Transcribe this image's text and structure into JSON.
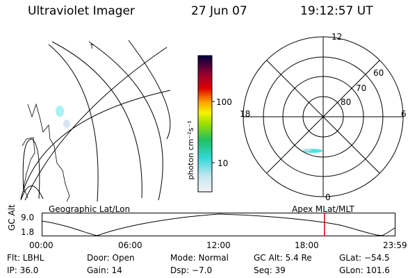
{
  "header": {
    "title": "Ultraviolet Imager",
    "date": "27 Jun 07",
    "time": "19:12:57 UT"
  },
  "geographic_panel": {
    "label": "Geographic Lat/Lon"
  },
  "colorbar": {
    "unit_label": "photon cm⁻²s⁻¹",
    "ticks": [
      "100",
      "10"
    ],
    "scale": "log"
  },
  "polar_panel": {
    "label": "Apex  MLat/MLT",
    "mlt_labels": {
      "top": "12",
      "left": "18",
      "right": "6",
      "bottom": "0"
    },
    "lat_labels": [
      "80",
      "70",
      "60"
    ]
  },
  "altitude_panel": {
    "ylabel": "GC Alt",
    "ymax": "9.0",
    "ymin": "1.8",
    "time_ticks": [
      "00:00",
      "06:00",
      "12:00",
      "18:00",
      "23:59"
    ],
    "current_time_hours": 19.22,
    "marker_color": "#dd0000"
  },
  "info": {
    "row1": {
      "filter": "Flt: LBHL",
      "door": "Door: Open",
      "mode": "Mode: Normal",
      "gc_alt": "GC Alt: 5.4 Re",
      "glat": "GLat: −54.5"
    },
    "row2": {
      "ip": "IP: 36.0",
      "gain": "Gain: 14",
      "dsp": "Dsp:    −7.0",
      "seq": "Seq: 39",
      "glon": "GLon: 101.6"
    }
  }
}
